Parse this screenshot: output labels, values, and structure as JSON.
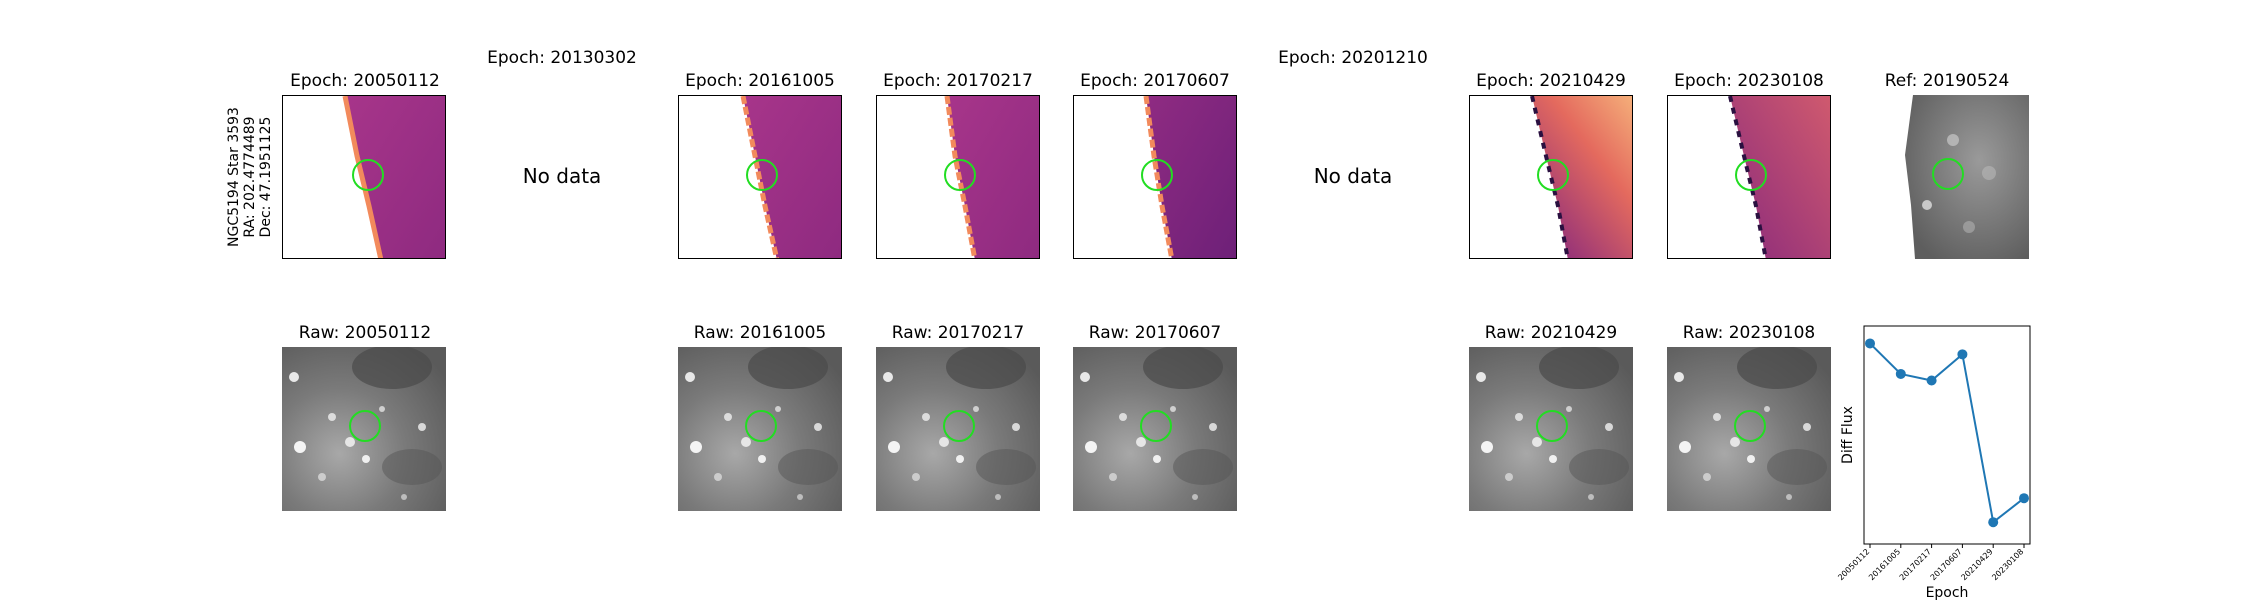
{
  "row_label": {
    "star": "NGC5194 Star 3593",
    "ra": "RA: 202.4774489",
    "dec": "Dec: 47.1951125"
  },
  "diff_row": [
    {
      "title": "Epoch: 20050112",
      "has_data": true,
      "style": "dark"
    },
    {
      "title": "Epoch: 20130302",
      "has_data": false,
      "nodata": "No data"
    },
    {
      "title": "Epoch: 20161005",
      "has_data": true,
      "style": "dark"
    },
    {
      "title": "Epoch: 20170217",
      "has_data": true,
      "style": "dark"
    },
    {
      "title": "Epoch: 20170607",
      "has_data": true,
      "style": "darker"
    },
    {
      "title": "Epoch: 20201210",
      "has_data": false,
      "nodata": "No data"
    },
    {
      "title": "Epoch: 20210429",
      "has_data": true,
      "style": "bright"
    },
    {
      "title": "Epoch: 20230108",
      "has_data": true,
      "style": "mid"
    },
    {
      "title": "Ref: 20190524",
      "has_data": true,
      "style": "ref"
    }
  ],
  "raw_row": [
    {
      "title": "Raw: 20050112"
    },
    {
      "title": "Raw: 20161005"
    },
    {
      "title": "Raw: 20170217"
    },
    {
      "title": "Raw: 20170607"
    },
    {
      "title": "Raw: 20210429"
    },
    {
      "title": "Raw: 20230108"
    }
  ],
  "colors": {
    "circle": "#22dd22",
    "line": "#1f77b4",
    "diff_dark": "#9c2f84",
    "diff_bright": "#e8705a",
    "edge": "#f28a5c"
  },
  "chart_data": {
    "type": "line",
    "title": "",
    "xlabel": "Epoch",
    "ylabel": "Diff Flux",
    "categories": [
      "20050112",
      "20161005",
      "20170217",
      "20170607",
      "20210429",
      "20230108"
    ],
    "values": [
      0.92,
      0.78,
      0.75,
      0.87,
      0.1,
      0.21
    ],
    "ylim": [
      0,
      1
    ],
    "grid": false
  }
}
